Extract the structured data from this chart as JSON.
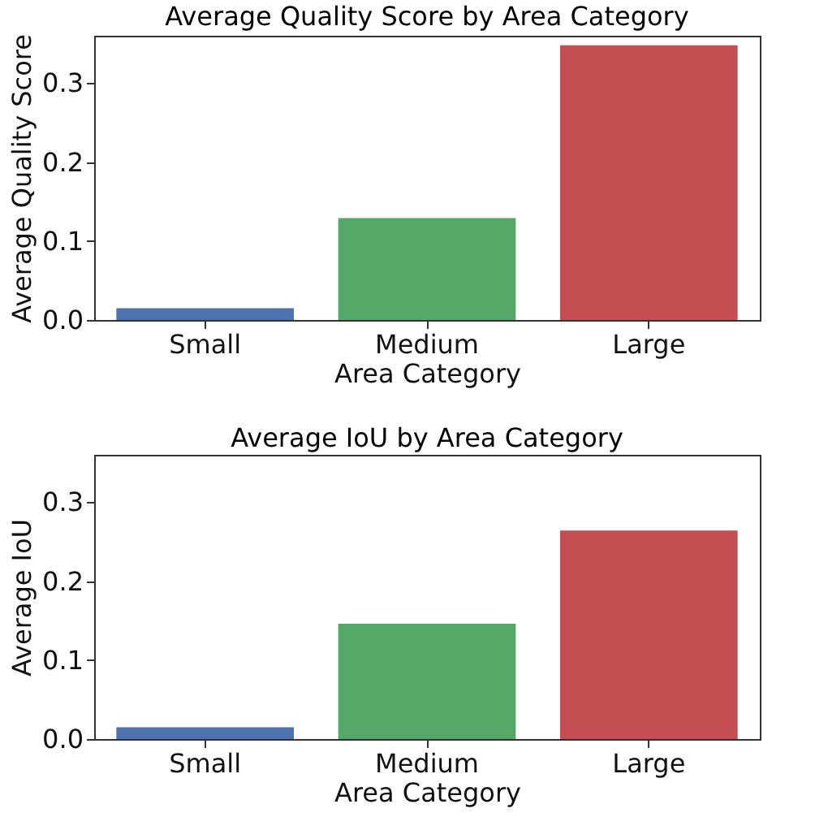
{
  "chart_data": [
    {
      "type": "bar",
      "title": "Average Quality Score by Area Category",
      "xlabel": "Area Category",
      "ylabel": "Average Quality Score",
      "categories": [
        "Small",
        "Medium",
        "Large"
      ],
      "values": [
        0.015,
        0.129,
        0.348
      ],
      "colors": [
        "#4c72b0",
        "#55a868",
        "#c44e52"
      ],
      "ylim": [
        0,
        0.36
      ],
      "yticks": [
        {
          "value": 0,
          "label": "0.0"
        },
        0.1,
        0.2,
        0.3
      ],
      "grid": false,
      "legend": false
    },
    {
      "type": "bar",
      "title": "Average IoU by Area Category",
      "xlabel": "Area Category",
      "ylabel": "Average IoU",
      "categories": [
        "Small",
        "Medium",
        "Large"
      ],
      "values": [
        0.015,
        0.146,
        0.264
      ],
      "colors": [
        "#4c72b0",
        "#55a868",
        "#c44e52"
      ],
      "ylim": [
        0,
        0.36
      ],
      "yticks": [
        {
          "value": 0,
          "label": "0.0"
        },
        0.1,
        0.2,
        0.3
      ],
      "grid": false,
      "legend": false
    }
  ]
}
